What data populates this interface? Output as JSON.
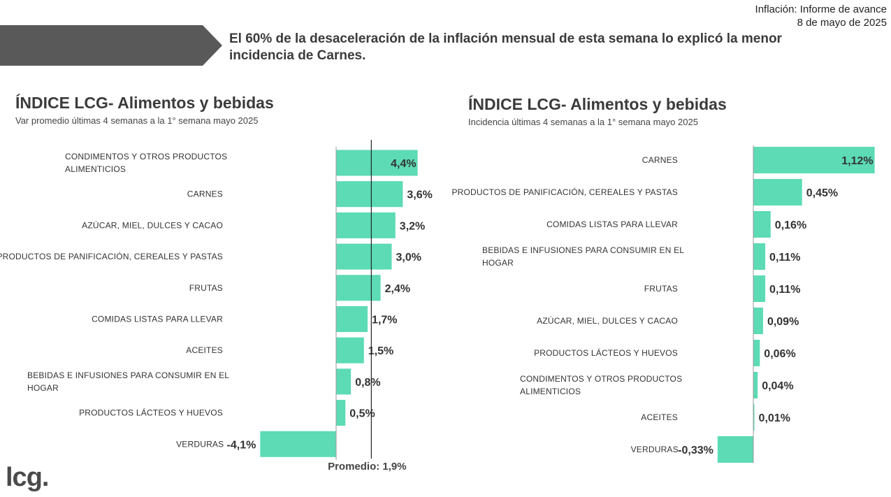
{
  "report": {
    "title": "Inflación: Informe de avance",
    "date": "8 de mayo de 2025"
  },
  "headline": "El 60% de la desaceleración de la inflación mensual de esta semana lo explicó la menor incidencia de Carnes.",
  "logo": "lcg.",
  "colors": {
    "bar": "#5cdbb5",
    "banner": "#595959",
    "axis": "#333333"
  },
  "chart_data": [
    {
      "type": "bar",
      "orientation": "horizontal",
      "title": "ÍNDICE LCG- Alimentos y bebidas",
      "subtitle": "Var promedio últimas 4 semanas a la 1° semana mayo 2025",
      "categories": [
        [
          "CONDIMENTOS Y OTROS PRODUCTOS",
          "ALIMENTICIOS"
        ],
        [
          "CARNES"
        ],
        [
          "AZÚCAR, MIEL, DULCES Y CACAO"
        ],
        [
          "PRODUCTOS DE PANIFICACIÓN, CEREALES Y PASTAS"
        ],
        [
          "FRUTAS"
        ],
        [
          "COMIDAS LISTAS PARA LLEVAR"
        ],
        [
          "ACEITES"
        ],
        [
          "BEBIDAS E INFUSIONES PARA CONSUMIR EN EL",
          "HOGAR"
        ],
        [
          "PRODUCTOS LÁCTEOS Y HUEVOS"
        ],
        [
          "VERDURAS"
        ]
      ],
      "values": [
        4.4,
        3.6,
        3.2,
        3.0,
        2.4,
        1.7,
        1.5,
        0.8,
        0.5,
        -4.1
      ],
      "value_labels": [
        "4,4%",
        "3,6%",
        "3,2%",
        "3,0%",
        "2,4%",
        "1,7%",
        "1,5%",
        "0,8%",
        "0,5%",
        "-4,1%"
      ],
      "reference_line": {
        "value": 1.9,
        "label": "Promedio: 1,9%"
      }
    },
    {
      "type": "bar",
      "orientation": "horizontal",
      "title": "ÍNDICE LCG- Alimentos y bebidas",
      "subtitle": "Incidencia últimas 4 semanas a la 1° semana mayo 2025",
      "categories": [
        [
          "CARNES"
        ],
        [
          "PRODUCTOS DE PANIFICACIÓN, CEREALES Y PASTAS"
        ],
        [
          "COMIDAS LISTAS PARA LLEVAR"
        ],
        [
          "BEBIDAS E INFUSIONES PARA CONSUMIR EN EL",
          "HOGAR"
        ],
        [
          "FRUTAS"
        ],
        [
          "AZÚCAR, MIEL, DULCES Y CACAO"
        ],
        [
          "PRODUCTOS LÁCTEOS Y HUEVOS"
        ],
        [
          "CONDIMENTOS Y OTROS PRODUCTOS",
          "ALIMENTICIOS"
        ],
        [
          "ACEITES"
        ],
        [
          "VERDURAS"
        ]
      ],
      "values": [
        1.12,
        0.45,
        0.16,
        0.11,
        0.11,
        0.09,
        0.06,
        0.04,
        0.01,
        -0.33
      ],
      "value_labels": [
        "1,12%",
        "0,45%",
        "0,16%",
        "0,11%",
        "0,11%",
        "0,09%",
        "0,06%",
        "0,04%",
        "0,01%",
        "-0,33%"
      ]
    }
  ]
}
